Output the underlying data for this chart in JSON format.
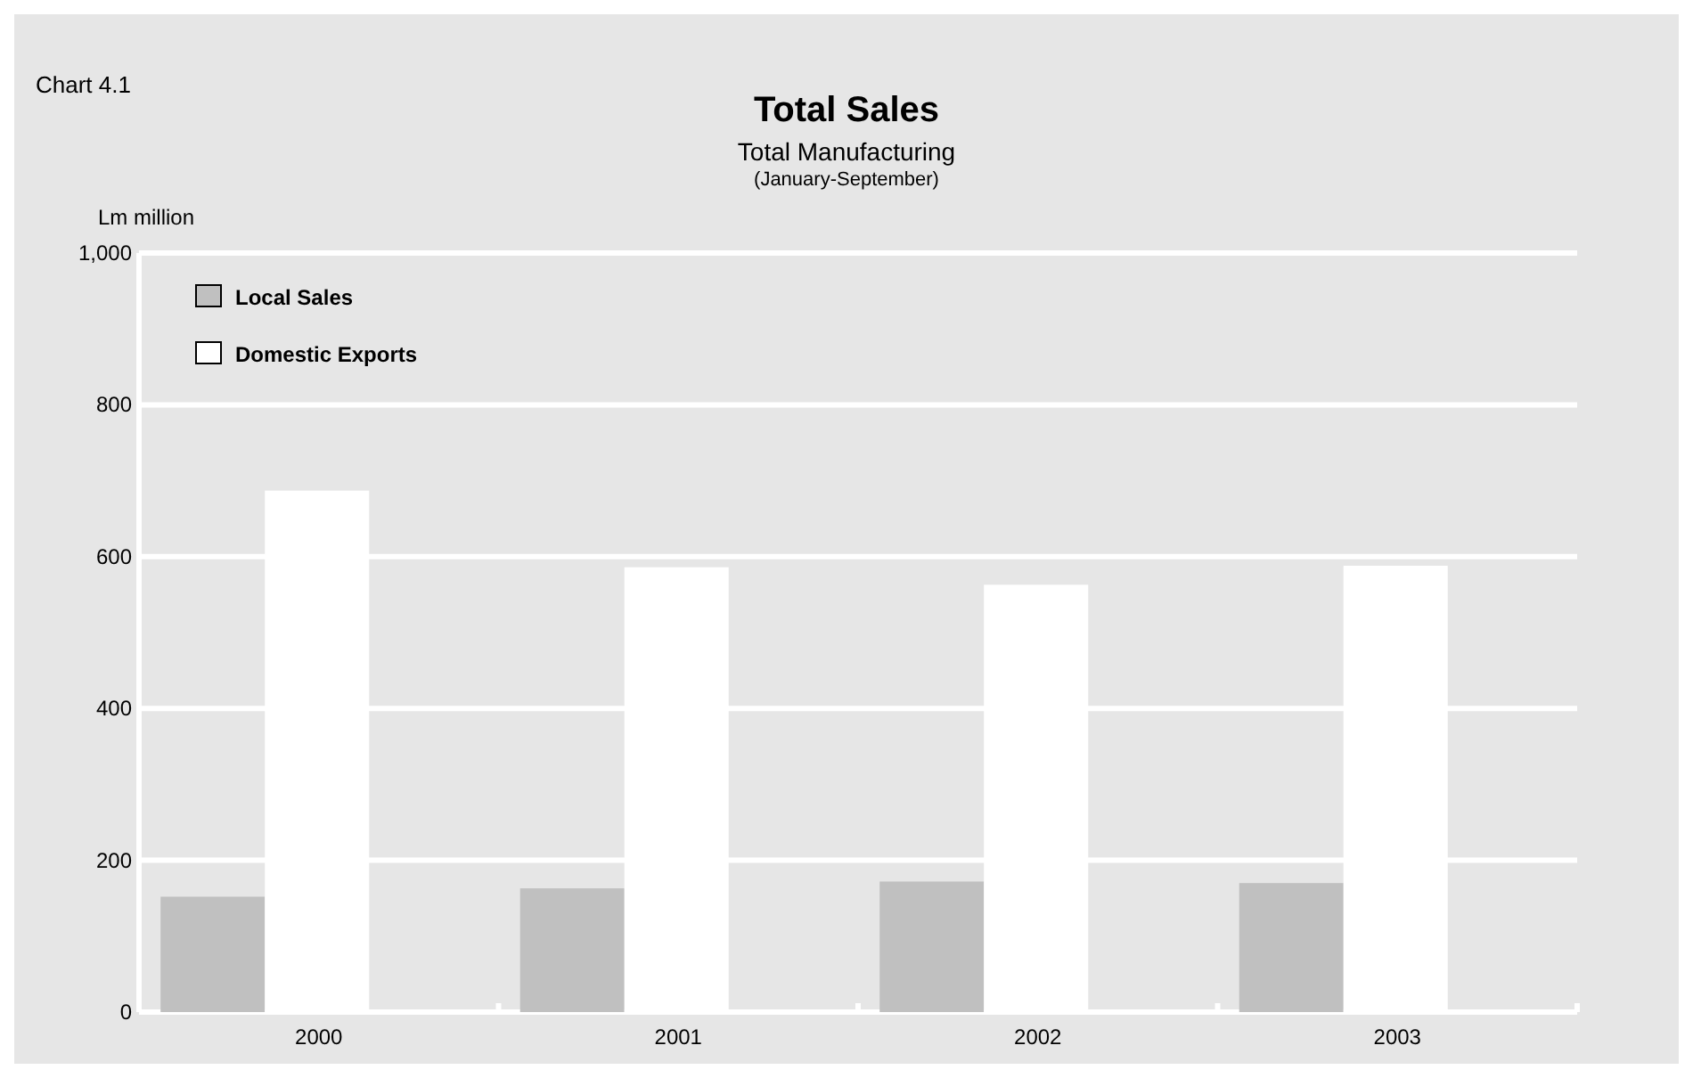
{
  "chart_data": {
    "type": "bar",
    "title": "Total Sales",
    "subtitle": "Total Manufacturing",
    "ylabel": "Lm million",
    "annotations": [
      "Chart 4.1",
      "(January-September)"
    ],
    "categories": [
      "2000",
      "2001",
      "2002",
      "2003"
    ],
    "series": [
      {
        "name": "Local Sales",
        "color": "#c0c0c0",
        "values": [
          152,
          163,
          172,
          170
        ]
      },
      {
        "name": "Domestic Exports",
        "color": "#ffffff",
        "values": [
          687,
          586,
          563,
          588
        ]
      }
    ],
    "ylim": [
      0,
      1000
    ],
    "yticks": [
      0,
      200,
      400,
      600,
      800,
      {
        "value": 1000,
        "label": "1,000"
      }
    ],
    "grid": "y",
    "legend": "top left"
  }
}
